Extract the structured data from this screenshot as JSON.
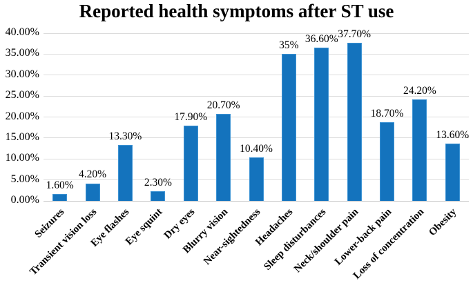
{
  "chart_data": {
    "type": "bar",
    "title": "Reported health symptoms after ST use",
    "categories": [
      "Seizures",
      "Transient vision loss",
      "Eye flashes",
      "Eye squint",
      "Dry eyes",
      "Blurry vision",
      "Near-sightedness",
      "Headaches",
      "Sleep disturbances",
      "Neck/shoulder pain",
      "Lower-back pain",
      "Loss of concentration",
      "Obesity"
    ],
    "values": [
      1.6,
      4.2,
      13.3,
      2.3,
      17.9,
      20.7,
      10.4,
      35,
      36.6,
      37.7,
      18.7,
      24.2,
      13.6
    ],
    "value_labels": [
      "1.60%",
      "4.20%",
      "13.30%",
      "2.30%",
      "17.90%",
      "20.70%",
      "10.40%",
      "35%",
      "36.60%",
      "37.70%",
      "18.70%",
      "24.20%",
      "13.60%"
    ],
    "y_ticks": [
      "0.00%",
      "5.00%",
      "10.00%",
      "15.00%",
      "20.00%",
      "25.00%",
      "30.00%",
      "35.00%",
      "40.00%"
    ],
    "y_tick_values": [
      0,
      5,
      10,
      15,
      20,
      25,
      30,
      35,
      40
    ],
    "ylim": [
      0,
      40
    ],
    "xlabel": "",
    "ylabel": "",
    "grid": true,
    "legend_position": "none",
    "bar_color": "#1473bd",
    "bar_border_color": "#3d93d4",
    "gridline_color": "#dcdcdc",
    "axis_line_color": "#c9c9c9",
    "text_color": "#000000"
  }
}
